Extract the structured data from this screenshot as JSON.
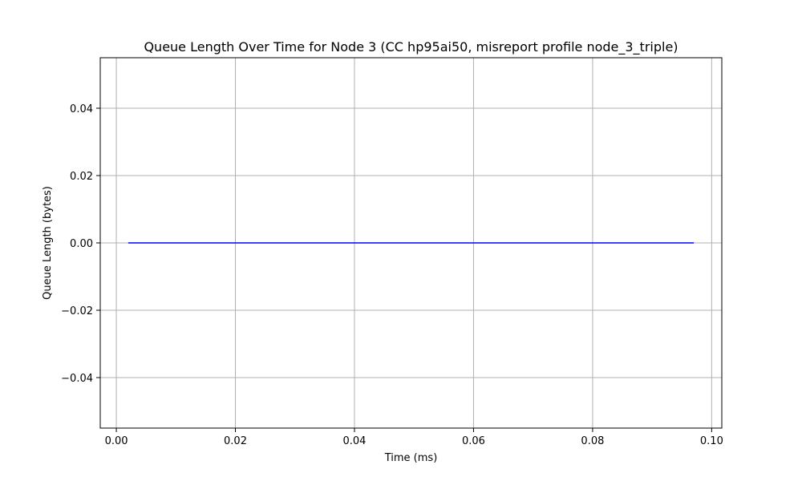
{
  "chart_data": {
    "type": "line",
    "title": "Queue Length Over Time for Node 3 (CC hp95ai50, misreport profile node_3_triple)",
    "xlabel": "Time (ms)",
    "ylabel": "Queue Length (bytes)",
    "xlim": [
      -0.0027,
      0.1017
    ],
    "ylim": [
      -0.055,
      0.055
    ],
    "x_ticks": [
      0.0,
      0.02,
      0.04,
      0.06,
      0.08,
      0.1
    ],
    "x_tick_labels": [
      "0.00",
      "0.02",
      "0.04",
      "0.06",
      "0.08",
      "0.10"
    ],
    "y_ticks": [
      -0.04,
      -0.02,
      0.0,
      0.02,
      0.04
    ],
    "y_tick_labels": [
      "−0.04",
      "−0.02",
      "0.00",
      "0.02",
      "0.04"
    ],
    "grid": true,
    "series": [
      {
        "color": "#0000ff",
        "x": [
          0.002,
          0.097
        ],
        "y": [
          0.0,
          0.0
        ]
      }
    ]
  }
}
